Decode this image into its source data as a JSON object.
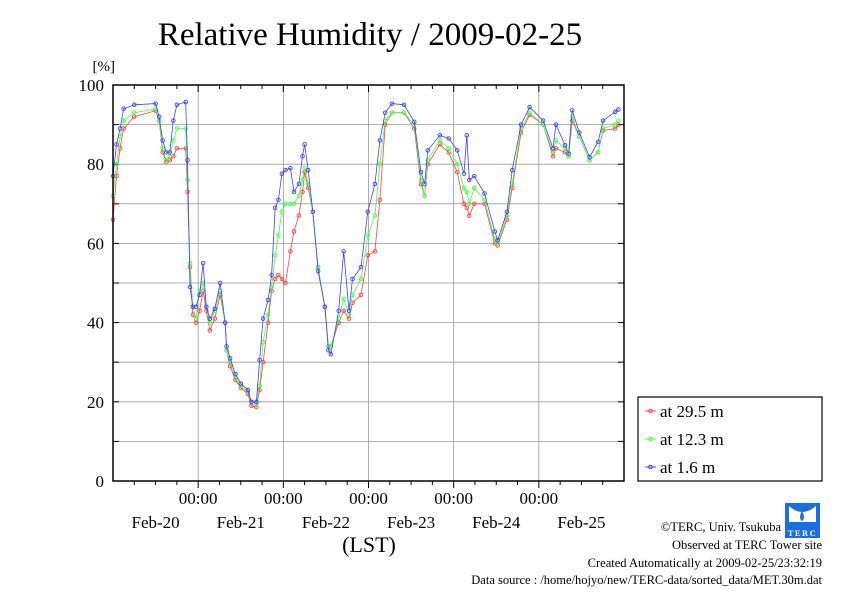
{
  "chart_data": {
    "type": "line",
    "title": "Relative Humidity / 2009-02-25",
    "ylabel": "[%]",
    "xlabel": "(LST)",
    "ylim": [
      0,
      100
    ],
    "yticks": [
      0,
      20,
      40,
      60,
      80,
      100
    ],
    "ygrid_step": 10,
    "xlim_hours": [
      0,
      144
    ],
    "x_unit": "hours since Feb-20 00:00",
    "grid": true,
    "xtick_time_labels": [
      {
        "hour": 24,
        "label": "00:00"
      },
      {
        "hour": 48,
        "label": "00:00"
      },
      {
        "hour": 72,
        "label": "00:00"
      },
      {
        "hour": 96,
        "label": "00:00"
      },
      {
        "hour": 120,
        "label": "00:00"
      }
    ],
    "xtick_day_labels": [
      {
        "hour": 12,
        "label": "Feb-20"
      },
      {
        "hour": 36,
        "label": "Feb-21"
      },
      {
        "hour": 60,
        "label": "Feb-22"
      },
      {
        "hour": 84,
        "label": "Feb-23"
      },
      {
        "hour": 108,
        "label": "Feb-24"
      },
      {
        "hour": 132,
        "label": "Feb-25"
      }
    ],
    "legend_position": "bottom-right-outside",
    "x": [
      0,
      1,
      2,
      3,
      6,
      12,
      13,
      14,
      15,
      16,
      17,
      18,
      20.5,
      21,
      21.7,
      22.5,
      23.4,
      24.4,
      25.4,
      26.3,
      27.3,
      28.7,
      30.2,
      31.6,
      32,
      33,
      34.5,
      36,
      38,
      39,
      40.4,
      41.3,
      42.3,
      43.7,
      44.7,
      45.7,
      46.6,
      47.6,
      48.6,
      50,
      51,
      52.4,
      53.4,
      54,
      55,
      56.3,
      57.8,
      59.7,
      60.7,
      61.4,
      63.6,
      65,
      66.5,
      67.5,
      69.9,
      71.8,
      73.8,
      75.2,
      76.7,
      78.6,
      82,
      84.9,
      86.8,
      87.8,
      88.7,
      92.1,
      94.6,
      97,
      98.9,
      99.7,
      100.4,
      101.8,
      104.7,
      107.6,
      108.4,
      111,
      112.5,
      115,
      117.4,
      121.2,
      124,
      124.8,
      127.4,
      128.4,
      129.4,
      131.4,
      134.3,
      136.7,
      138.1,
      141.5,
      142.4
    ],
    "series": [
      {
        "name": "at 29.5 m",
        "color": "#ff4040",
        "values": [
          66,
          77,
          84,
          89,
          92,
          93.5,
          91,
          83,
          80.5,
          81,
          82,
          84,
          84,
          73,
          54,
          42,
          40,
          43,
          48,
          43,
          38,
          41,
          47,
          40,
          33,
          29,
          25.5,
          23.5,
          22,
          19,
          18.7,
          23,
          30,
          40,
          48,
          51,
          52,
          51,
          50,
          58,
          63,
          67,
          73,
          78,
          74,
          68,
          54,
          44,
          34,
          34,
          40,
          43,
          41,
          45,
          47,
          57,
          58,
          71,
          90,
          93,
          93,
          89,
          75,
          72,
          80,
          85,
          83,
          78,
          70,
          69,
          67,
          70,
          70,
          60,
          59.5,
          66,
          74,
          88,
          92.5,
          90,
          82,
          84,
          83,
          82,
          91,
          87,
          81,
          83,
          88.5,
          89,
          90
        ]
      },
      {
        "name": "at 12.3 m",
        "color": "#40ff40",
        "values": [
          72,
          80,
          87,
          91,
          93,
          94,
          91,
          84,
          81,
          82,
          86,
          89,
          89,
          76,
          55,
          44,
          41,
          48,
          50,
          44,
          40,
          43,
          48,
          40,
          33,
          30,
          26,
          24,
          22.5,
          20,
          19.5,
          24,
          35,
          42,
          49,
          57,
          62,
          68,
          70,
          70,
          70,
          72,
          76,
          79,
          75,
          68,
          54,
          44,
          34,
          34,
          41,
          46,
          42,
          47,
          51,
          62,
          67,
          80,
          91,
          93,
          93,
          90,
          76,
          72,
          81,
          86,
          84,
          80,
          74,
          73,
          70,
          74,
          71,
          61,
          60,
          67,
          75,
          89,
          93,
          90,
          83,
          86,
          84,
          82,
          92,
          87,
          81,
          83,
          89,
          90,
          91
        ]
      },
      {
        "name": "at 1.6 m",
        "color": "#4040ff",
        "values": [
          77,
          85,
          89,
          94,
          95,
          95.3,
          92,
          86,
          83,
          83,
          91,
          95,
          95.7,
          81,
          49,
          44,
          44,
          47,
          55,
          44,
          41,
          43.5,
          50,
          40,
          34,
          31,
          27,
          24.6,
          23,
          20,
          20,
          30.5,
          41,
          45.7,
          52,
          69,
          71,
          77.6,
          78.5,
          79,
          73,
          75,
          82,
          85,
          78.5,
          68,
          53,
          44,
          33,
          32,
          43,
          58,
          43,
          51,
          54,
          68,
          75,
          86,
          93,
          95.3,
          95,
          90.7,
          78,
          75,
          83.5,
          87.3,
          86.5,
          83.5,
          77.6,
          87.3,
          76,
          77,
          72.6,
          63,
          60.8,
          68,
          78.5,
          90,
          94.4,
          91,
          84,
          90,
          84.8,
          82.7,
          93.6,
          88,
          81.8,
          85.6,
          91,
          93.2,
          93.8
        ]
      }
    ]
  },
  "footer": {
    "copyright": "©TERC, Univ. Tsukuba",
    "observed": "Observed at TERC Tower site",
    "created": "Created Automatically at 2009-02-25/23:32:19",
    "source": "Data source : /home/hojyo/new/TERC-data/sorted_data/MET.30m.dat",
    "logo_text": "TERC"
  }
}
